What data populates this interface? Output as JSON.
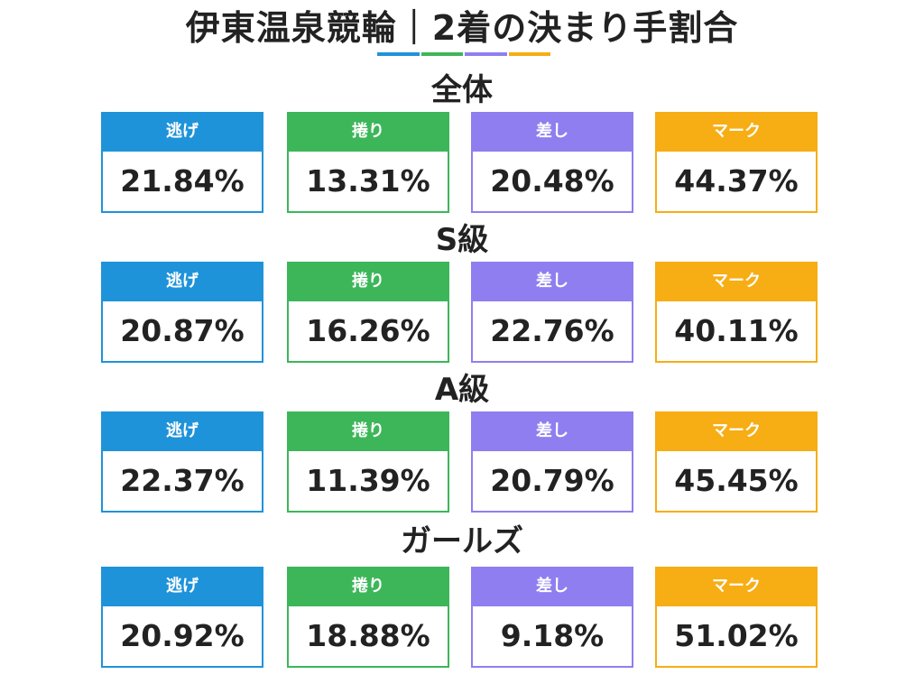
{
  "title": "伊東温泉競輪｜2着の決まり手割合",
  "colors": {
    "nige": "#1f93d9",
    "makuri": "#3db65a",
    "sashi": "#8f7ef0",
    "mark": "#f7ad14"
  },
  "chart_data": {
    "type": "table",
    "title": "伊東温泉競輪｜2着の決まり手割合",
    "columns": [
      "逃げ",
      "捲り",
      "差し",
      "マーク"
    ],
    "sections": [
      {
        "name": "全体",
        "values": [
          "21.84%",
          "13.31%",
          "20.48%",
          "44.37%"
        ]
      },
      {
        "name": "S級",
        "values": [
          "20.87%",
          "16.26%",
          "22.76%",
          "40.11%"
        ]
      },
      {
        "name": "A級",
        "values": [
          "22.37%",
          "11.39%",
          "20.79%",
          "45.45%"
        ]
      },
      {
        "name": "ガールズ",
        "values": [
          "20.92%",
          "18.88%",
          "9.18%",
          "51.02%"
        ]
      }
    ]
  }
}
